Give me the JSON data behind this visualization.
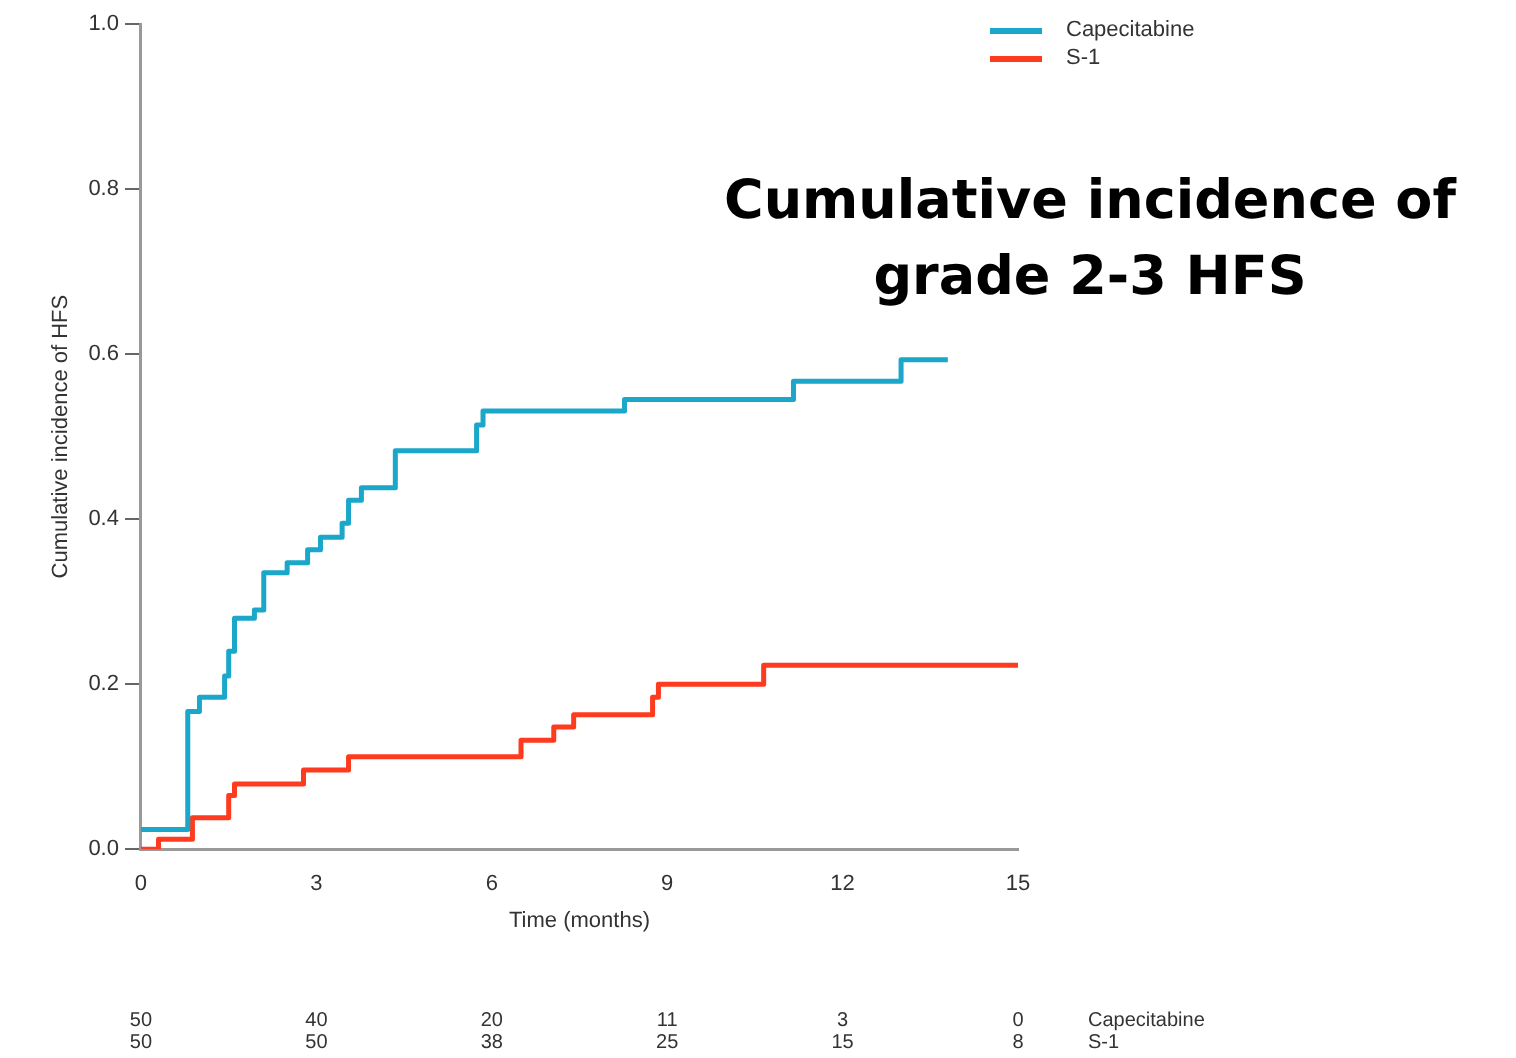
{
  "chart_data": {
    "type": "step",
    "title": "Cumulative incidence of grade 2-3 HFS",
    "xlabel": "Time (months)",
    "ylabel": "Cumulative incidence of HFS",
    "xlim": [
      0,
      15
    ],
    "xticks": [
      0,
      3,
      6,
      9,
      12,
      15
    ],
    "ylim": [
      0,
      1
    ],
    "yticks": [
      {
        "value": 0,
        "label": "0.0"
      },
      {
        "value": 0.2,
        "label": "0.2"
      },
      {
        "value": 0.4,
        "label": "0.4"
      },
      {
        "value": 0.6,
        "label": "0.6"
      },
      {
        "value": 0.8,
        "label": "0.8"
      },
      {
        "value": 1,
        "label": "1.0"
      }
    ],
    "grid": false,
    "legend": "top right",
    "line_style": "solid",
    "marker": "none",
    "series": [
      {
        "name": "Capecitabine",
        "color": "#1aa7c9",
        "x": [
          0,
          0.8,
          1.0,
          1.43,
          1.5,
          1.6,
          1.94,
          2.1,
          2.5,
          2.85,
          3.07,
          3.44,
          3.55,
          3.77,
          4.35,
          5.74,
          5.85,
          8.27,
          11.16,
          13.0,
          13.8
        ],
        "values": [
          0.024,
          0.167,
          0.184,
          0.21,
          0.24,
          0.28,
          0.29,
          0.335,
          0.347,
          0.363,
          0.378,
          0.395,
          0.423,
          0.438,
          0.483,
          0.514,
          0.531,
          0.545,
          0.567,
          0.593,
          0.593
        ]
      },
      {
        "name": "S-1",
        "color": "#ff3b1f",
        "x": [
          0,
          0.3,
          0.88,
          1.5,
          1.6,
          2.78,
          3.55,
          6.5,
          7.06,
          7.4,
          8.75,
          8.85,
          10.65,
          15
        ],
        "values": [
          0,
          0.012,
          0.038,
          0.065,
          0.079,
          0.096,
          0.112,
          0.132,
          0.148,
          0.163,
          0.184,
          0.2,
          0.223,
          0.223
        ]
      }
    ],
    "annotations": [
      "50 40 20 11 3 0 Capecitabine",
      "50 50 38 25 15 8 S-1"
    ]
  }
}
